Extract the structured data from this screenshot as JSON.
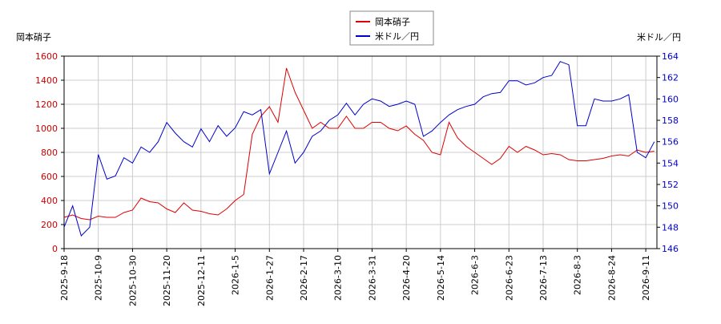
{
  "chart_data": {
    "type": "line",
    "y_label": "岡本硝子",
    "y2_label": "米ドル／円",
    "categories": [
      "2025-9-18",
      null,
      null,
      null,
      "2025-10-9",
      null,
      null,
      null,
      "2025-10-30",
      null,
      null,
      null,
      "2025-11-20",
      null,
      null,
      null,
      "2025-12-11",
      null,
      null,
      null,
      "2026-1-5",
      null,
      null,
      null,
      "2026-1-27",
      null,
      null,
      null,
      "2026-2-17",
      null,
      null,
      null,
      "2026-3-10",
      null,
      null,
      null,
      "2026-3-31",
      null,
      null,
      null,
      "2026-4-20",
      null,
      null,
      null,
      "2026-5-14",
      null,
      null,
      null,
      "2026-6-3",
      null,
      null,
      null,
      "2026-6-23",
      null,
      null,
      null,
      "2026-7-13",
      null,
      null,
      null,
      "2026-8-3",
      null,
      null,
      null,
      "2026-8-24",
      null,
      null,
      null,
      "2026-9-11",
      null
    ],
    "series": [
      {
        "name": "岡本硝子",
        "color": "#dd0000",
        "axis": "y",
        "values": [
          260,
          280,
          250,
          240,
          270,
          260,
          260,
          300,
          320,
          420,
          390,
          380,
          330,
          300,
          380,
          320,
          310,
          290,
          280,
          330,
          400,
          450,
          950,
          1100,
          1180,
          1050,
          1500,
          1300,
          1150,
          1000,
          1050,
          1000,
          1000,
          1100,
          1000,
          1000,
          1050,
          1050,
          1000,
          980,
          1020,
          950,
          900,
          800,
          780,
          1050,
          920,
          850,
          800,
          750,
          700,
          750,
          850,
          800,
          850,
          820,
          780,
          790,
          780,
          740,
          730,
          730,
          740,
          750,
          770,
          780,
          770,
          820,
          800,
          810
        ]
      },
      {
        "name": "米ドル／円",
        "color": "#0000cc",
        "axis": "y2",
        "values": [
          148,
          150,
          147.2,
          148,
          154.8,
          152.5,
          152.8,
          154.5,
          154,
          155.5,
          155,
          156,
          157.8,
          156.8,
          156,
          155.5,
          157.2,
          156,
          157.5,
          156.5,
          157.3,
          158.8,
          158.5,
          159,
          153,
          155,
          157,
          154,
          155,
          156.5,
          157,
          158,
          158.5,
          159.6,
          158.5,
          159.5,
          160,
          159.8,
          159.3,
          159.5,
          159.8,
          159.5,
          156.5,
          157,
          157.8,
          158.5,
          159,
          159.3,
          159.5,
          160.2,
          160.5,
          160.6,
          161.7,
          161.7,
          161.3,
          161.5,
          162,
          162.2,
          163.5,
          163.2,
          157.5,
          157.5,
          160,
          159.8,
          159.8,
          160,
          160.4,
          155,
          154.5,
          156
        ]
      }
    ],
    "ylim": [
      0,
      1600
    ],
    "yticks": [
      0,
      200,
      400,
      600,
      800,
      1000,
      1200,
      1400,
      1600
    ],
    "y2lim": [
      146,
      164
    ],
    "y2ticks": [
      146,
      148,
      150,
      152,
      154,
      156,
      158,
      160,
      162,
      164
    ],
    "grid": true
  }
}
